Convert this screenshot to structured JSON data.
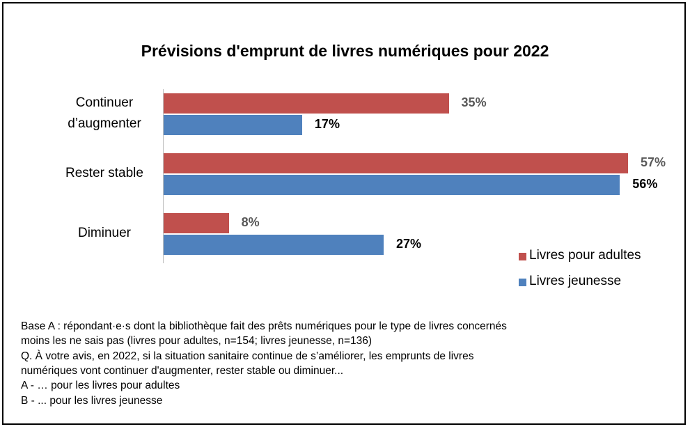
{
  "chart_data": {
    "type": "bar",
    "orientation": "horizontal",
    "title": "Prévisions d'emprunt de livres numériques pour 2022",
    "categories": [
      "Continuer d’augmenter",
      "Rester stable",
      "Diminuer"
    ],
    "series": [
      {
        "name": "Livres pour adultes",
        "color": "#c0504d",
        "values": [
          35,
          57,
          8
        ],
        "value_labels": [
          "35%",
          "57%",
          "8%"
        ],
        "label_color": "#595959"
      },
      {
        "name": "Livres jeunesse",
        "color": "#4f81bd",
        "values": [
          17,
          56,
          27
        ],
        "value_labels": [
          "17%",
          "56%",
          "27%"
        ],
        "label_color": "#000000"
      }
    ],
    "legend": "lower right",
    "notes": [
      "Base A : répondant·e·s dont la bibliothèque fait des prêts numériques pour le type de livres concernés",
      "moins les ne sais pas (livres pour adultes, n=154;  livres jeunesse, n=136)",
      "Q. À votre avis, en 2022, si la situation sanitaire continue de s’améliorer, les emprunts de livres",
      "numériques vont continuer d'augmenter, rester stable ou diminuer...",
      "A - … pour les livres pour adultes",
      "B - ... pour les livres jeunesse"
    ]
  }
}
